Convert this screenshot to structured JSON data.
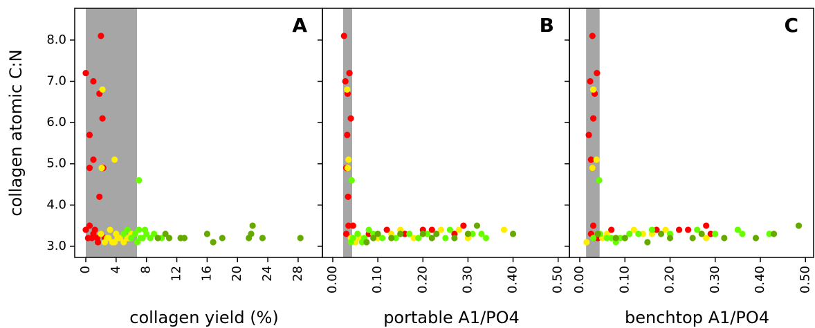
{
  "chart_data": [
    {
      "type": "scatter",
      "label": "A",
      "xlabel": "collagen yield (%)",
      "ylabel": "collagen atomic C:N",
      "xlim": [
        -1.46,
        31.2
      ],
      "ylim": [
        2.73,
        8.77
      ],
      "xticks": [
        0,
        4,
        8,
        12,
        16,
        20,
        24,
        28
      ],
      "yticks": [
        {
          "value": 3,
          "label": "3.0"
        },
        {
          "value": 4,
          "label": "4.0"
        },
        {
          "value": 5,
          "label": "5.0"
        },
        {
          "value": 6,
          "label": "6.0"
        },
        {
          "value": 7,
          "label": "7.0"
        },
        {
          "value": 8,
          "label": "8.0"
        }
      ],
      "shade": [
        0,
        6.75
      ],
      "shade_color": "#a6a6a6",
      "series": [
        {
          "color": "#ff0000",
          "x": [
            0,
            0.5,
            0.5,
            1,
            1,
            2,
            1.8,
            2.2,
            1.8,
            2.3,
            0,
            0.5,
            1,
            1.5,
            0.3,
            2,
            1.2,
            0.8,
            2.5,
            1.6
          ],
          "values": [
            7.2,
            5.7,
            4.9,
            7.0,
            5.1,
            8.1,
            6.7,
            6.1,
            4.2,
            4.9,
            3.4,
            3.5,
            3.3,
            3.2,
            3.2,
            3.3,
            3.4,
            3.2,
            3.2,
            3.1
          ]
        },
        {
          "color": "#ffee00",
          "x": [
            2.2,
            2.1,
            3.8,
            2,
            2.5,
            3,
            3.5,
            4,
            4.5,
            5,
            3.2,
            2.8,
            4.2,
            5.5,
            6,
            5.8,
            3.8
          ],
          "values": [
            6.8,
            4.9,
            5.1,
            3.3,
            3.1,
            3.2,
            3.1,
            3.3,
            3.2,
            3.1,
            3.4,
            3.2,
            3.2,
            3.2,
            3.3,
            3.2,
            3.1
          ]
        },
        {
          "color": "#66ff00",
          "x": [
            7,
            5,
            5.5,
            6,
            6.5,
            7,
            7.5,
            8,
            6.8,
            7.8,
            8.5,
            9,
            10,
            7.2
          ],
          "values": [
            4.6,
            3.3,
            3.4,
            3.2,
            3.3,
            3.4,
            3.2,
            3.3,
            3.1,
            3.4,
            3.2,
            3.3,
            3.2,
            3.2
          ]
        },
        {
          "color": "#66aa00",
          "x": [
            10.5,
            11,
            12.5,
            13,
            16,
            16.8,
            18,
            21.5,
            21.8,
            22,
            23.3,
            28.3,
            9.5
          ],
          "values": [
            3.3,
            3.2,
            3.2,
            3.2,
            3.3,
            3.1,
            3.2,
            3.2,
            3.3,
            3.5,
            3.2,
            3.2,
            3.2
          ]
        }
      ]
    },
    {
      "type": "scatter",
      "label": "B",
      "xlabel": "portable A1/PO4",
      "xlim": [
        -0.023,
        0.525
      ],
      "ylim": [
        2.73,
        8.77
      ],
      "xticks": [
        {
          "value": 0,
          "label": "0.00"
        },
        {
          "value": 0.1,
          "label": "0.10"
        },
        {
          "value": 0.2,
          "label": "0.20"
        },
        {
          "value": 0.3,
          "label": "0.30"
        },
        {
          "value": 0.4,
          "label": "0.40"
        },
        {
          "value": 0.5,
          "label": "0.50"
        }
      ],
      "shade": [
        0.023,
        0.043
      ],
      "shade_color": "#a6a6a6",
      "series": [
        {
          "color": "#ff0000",
          "x": [
            0.025,
            0.028,
            0.037,
            0.033,
            0.04,
            0.032,
            0.03,
            0.034,
            0.035,
            0.045,
            0.03,
            0.04,
            0.05,
            0.12,
            0.2,
            0.22,
            0.27,
            0.29,
            0.16,
            0.08
          ],
          "values": [
            8.1,
            7.0,
            7.2,
            6.7,
            6.1,
            5.7,
            4.9,
            4.2,
            3.5,
            3.5,
            3.3,
            3.2,
            3.1,
            3.4,
            3.4,
            3.4,
            3.3,
            3.5,
            3.3,
            3.3
          ]
        },
        {
          "color": "#ffee00",
          "x": [
            0.032,
            0.035,
            0.033,
            0.04,
            0.05,
            0.06,
            0.13,
            0.18,
            0.24,
            0.3,
            0.38,
            0.1,
            0.28,
            0.15
          ],
          "values": [
            6.8,
            5.1,
            4.9,
            3.2,
            3.1,
            3.2,
            3.3,
            3.2,
            3.4,
            3.2,
            3.4,
            3.2,
            3.4,
            3.4
          ]
        },
        {
          "color": "#66ff00",
          "x": [
            0.042,
            0.045,
            0.055,
            0.065,
            0.07,
            0.08,
            0.09,
            0.11,
            0.14,
            0.17,
            0.19,
            0.21,
            0.25,
            0.26,
            0.31,
            0.34,
            0.33,
            0.04
          ],
          "values": [
            4.6,
            3.2,
            3.3,
            3.1,
            3.2,
            3.4,
            3.3,
            3.2,
            3.2,
            3.3,
            3.2,
            3.3,
            3.2,
            3.4,
            3.3,
            3.2,
            3.3,
            3.1
          ]
        },
        {
          "color": "#66aa00",
          "x": [
            0.075,
            0.1,
            0.13,
            0.15,
            0.2,
            0.22,
            0.23,
            0.3,
            0.32,
            0.4,
            0.27,
            0.09
          ],
          "values": [
            3.1,
            3.3,
            3.2,
            3.3,
            3.3,
            3.2,
            3.3,
            3.3,
            3.5,
            3.3,
            3.2,
            3.2
          ]
        }
      ]
    },
    {
      "type": "scatter",
      "label": "C",
      "xlabel": "benchtop A1/PO4",
      "xlim": [
        -0.023,
        0.518
      ],
      "ylim": [
        2.73,
        8.77
      ],
      "xticks": [
        {
          "value": 0,
          "label": "0.00"
        },
        {
          "value": 0.1,
          "label": "0.10"
        },
        {
          "value": 0.2,
          "label": "0.20"
        },
        {
          "value": 0.3,
          "label": "0.30"
        },
        {
          "value": 0.4,
          "label": "0.40"
        },
        {
          "value": 0.5,
          "label": "0.50"
        }
      ],
      "shade": [
        0.014,
        0.044
      ],
      "shade_color": "#a6a6a6",
      "series": [
        {
          "color": "#ff0000",
          "x": [
            0.028,
            0.023,
            0.038,
            0.033,
            0.03,
            0.02,
            0.025,
            0.028,
            0.03,
            0.025,
            0.03,
            0.04,
            0.07,
            0.17,
            0.22,
            0.24,
            0.28,
            0.29
          ],
          "values": [
            8.1,
            7.0,
            7.2,
            6.7,
            6.1,
            5.7,
            5.1,
            4.9,
            3.5,
            3.3,
            3.2,
            3.2,
            3.4,
            3.4,
            3.4,
            3.4,
            3.5,
            3.3
          ]
        },
        {
          "color": "#ffee00",
          "x": [
            0.03,
            0.028,
            0.037,
            0.015,
            0.05,
            0.06,
            0.12,
            0.14,
            0.16,
            0.19,
            0.28,
            0.3,
            0.1
          ],
          "values": [
            6.8,
            4.9,
            5.1,
            3.1,
            3.2,
            3.3,
            3.4,
            3.3,
            3.3,
            3.4,
            3.2,
            3.3,
            3.2
          ]
        },
        {
          "color": "#66ff00",
          "x": [
            0.043,
            0.03,
            0.045,
            0.06,
            0.07,
            0.09,
            0.11,
            0.13,
            0.16,
            0.2,
            0.26,
            0.3,
            0.35,
            0.36,
            0.42,
            0.08
          ],
          "values": [
            4.6,
            3.2,
            3.3,
            3.2,
            3.2,
            3.2,
            3.3,
            3.3,
            3.4,
            3.3,
            3.4,
            3.3,
            3.4,
            3.3,
            3.3,
            3.1
          ]
        },
        {
          "color": "#66aa00",
          "x": [
            0.04,
            0.08,
            0.1,
            0.15,
            0.18,
            0.25,
            0.27,
            0.32,
            0.39,
            0.43,
            0.485,
            0.2
          ],
          "values": [
            3.3,
            3.2,
            3.2,
            3.1,
            3.3,
            3.2,
            3.3,
            3.2,
            3.2,
            3.3,
            3.5,
            3.2
          ]
        }
      ]
    }
  ]
}
